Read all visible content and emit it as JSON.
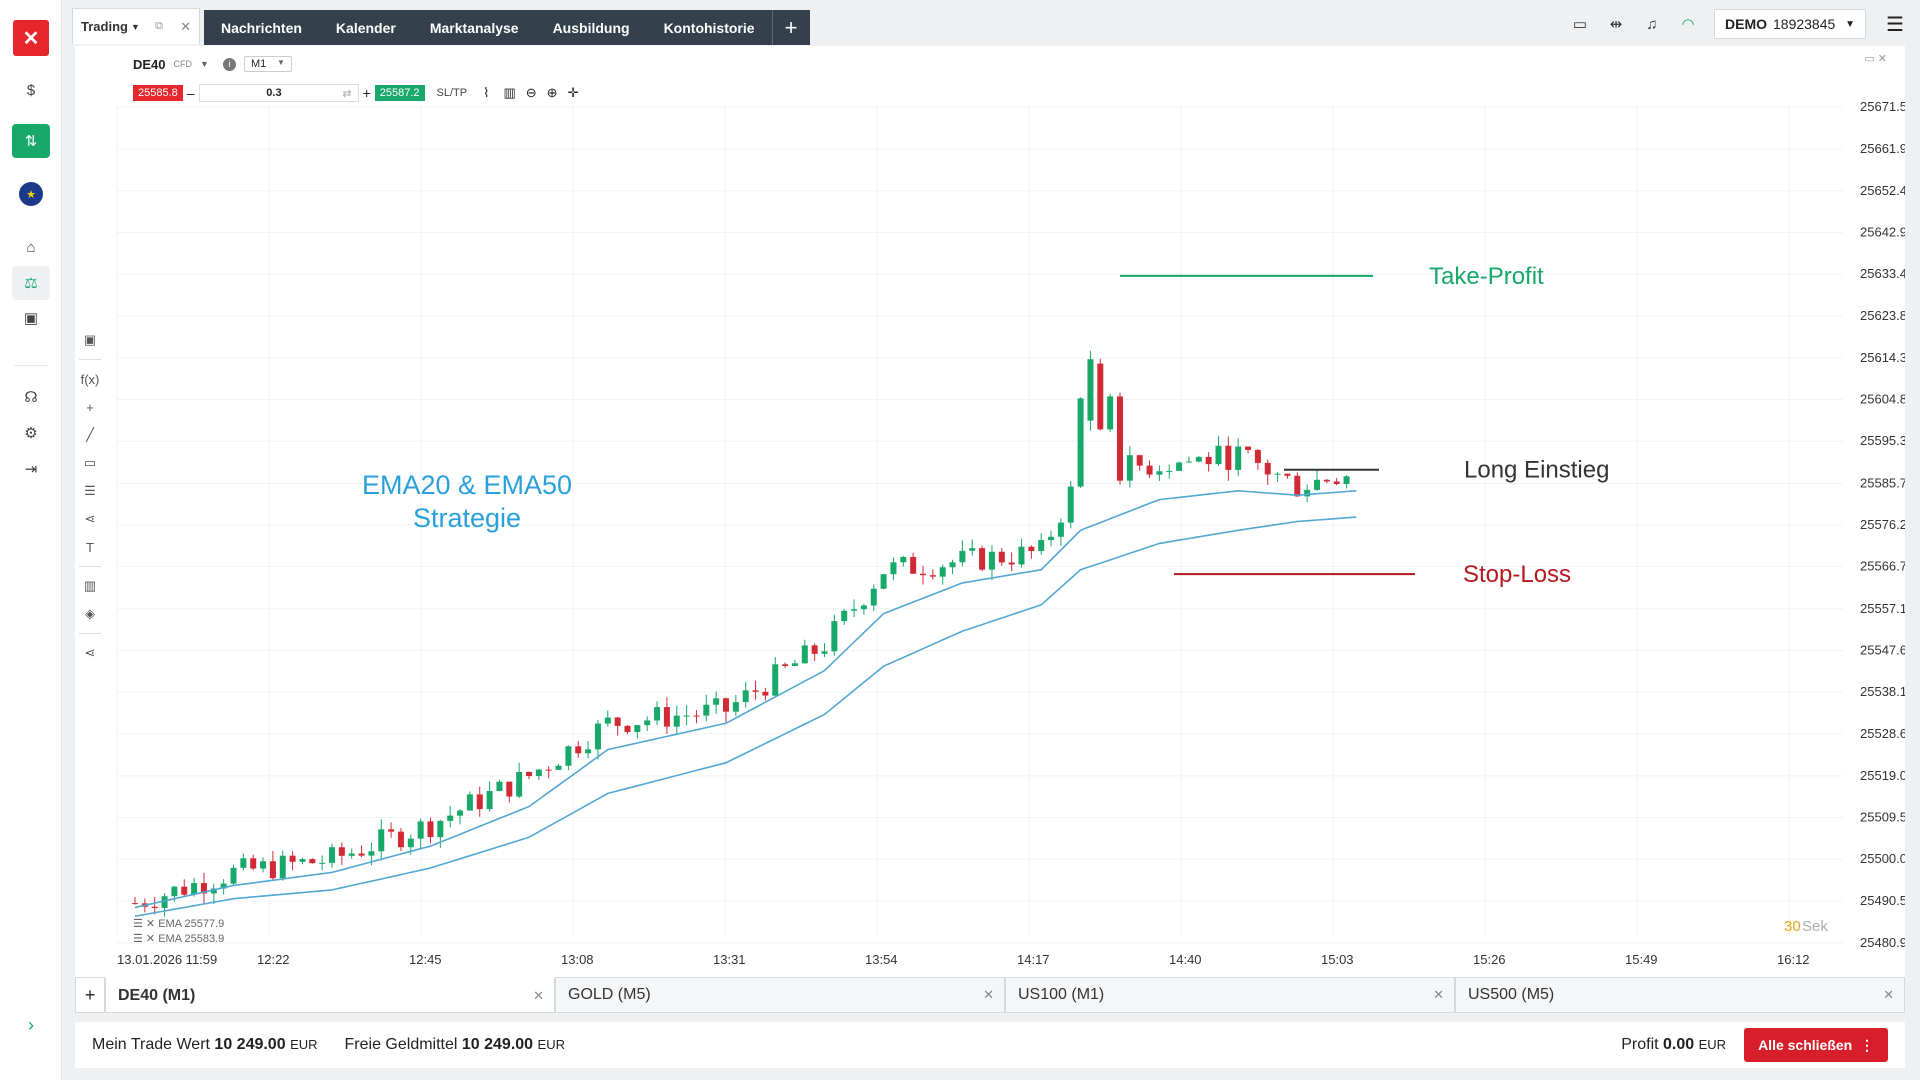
{
  "sidebar": {
    "logo": "✕",
    "icons": [
      {
        "name": "dollar-circle-icon",
        "glyph": "$"
      },
      {
        "name": "trading-app-icon",
        "glyph": "⇅"
      },
      {
        "name": "eu-flag-icon",
        "glyph": "★"
      },
      {
        "name": "home-icon",
        "glyph": "⌂"
      },
      {
        "name": "market-chart-icon",
        "glyph": "⚖"
      },
      {
        "name": "calculator-icon",
        "glyph": "▣"
      },
      {
        "name": "headset-icon",
        "glyph": "☊"
      },
      {
        "name": "gear-icon",
        "glyph": "⚙"
      },
      {
        "name": "logout-icon",
        "glyph": "⇥"
      }
    ],
    "expand": "›"
  },
  "top": {
    "trading_tab": "Trading",
    "nav": [
      "Nachrichten",
      "Kalender",
      "Marktanalyse",
      "Ausbildung",
      "Kontohistorie"
    ],
    "plus": "+",
    "account_type": "DEMO",
    "account_number": "18923845"
  },
  "chart": {
    "symbol": "DE40",
    "symbol_suffix": "CFD",
    "timeframe": "M1",
    "sell_price": "25585.8",
    "buy_price": "25587.2",
    "quantity": "0.3",
    "sltp_label": "SL/TP",
    "ema_legend": [
      "EMA 25577.9",
      "EMA 25583.9"
    ],
    "countdown_value": "30",
    "countdown_unit": "Sek"
  },
  "chart_data": {
    "type": "candlestick",
    "title": "EMA20 & EMA50 Strategie",
    "y_ticks": [
      25671.5,
      25661.9,
      25652.4,
      25642.9,
      25633.4,
      25623.8,
      25614.3,
      25604.8,
      25595.3,
      25585.7,
      25576.2,
      25566.7,
      25557.1,
      25547.6,
      25538.1,
      25528.6,
      25519.0,
      25509.5,
      25500.0,
      25490.5,
      25480.9
    ],
    "ylim": [
      25480.9,
      25671.5
    ],
    "x_ticks": [
      "13.01.2026 11:59",
      "12:22",
      "12:45",
      "13:08",
      "13:31",
      "13:54",
      "14:17",
      "14:40",
      "15:03",
      "15:26",
      "15:49",
      "16:12"
    ],
    "trend_path": [
      [
        0,
        25490
      ],
      [
        10,
        25497
      ],
      [
        20,
        25500
      ],
      [
        30,
        25508
      ],
      [
        40,
        25519
      ],
      [
        48,
        25531
      ],
      [
        60,
        25534
      ],
      [
        70,
        25549
      ],
      [
        76,
        25566
      ],
      [
        84,
        25568
      ],
      [
        92,
        25570
      ],
      [
        96,
        25588
      ],
      [
        104,
        25590
      ],
      [
        112,
        25592
      ],
      [
        118,
        25585
      ],
      [
        124,
        25589
      ]
    ],
    "ema20": [
      [
        0,
        25489
      ],
      [
        10,
        25494
      ],
      [
        20,
        25497
      ],
      [
        30,
        25503
      ],
      [
        40,
        25512
      ],
      [
        48,
        25525
      ],
      [
        60,
        25531
      ],
      [
        70,
        25543
      ],
      [
        76,
        25556
      ],
      [
        84,
        25563
      ],
      [
        92,
        25566
      ],
      [
        96,
        25575
      ],
      [
        104,
        25582
      ],
      [
        112,
        25584
      ],
      [
        118,
        25583
      ],
      [
        124,
        25584
      ]
    ],
    "ema50": [
      [
        0,
        25487
      ],
      [
        10,
        25491
      ],
      [
        20,
        25493
      ],
      [
        30,
        25498
      ],
      [
        40,
        25505
      ],
      [
        48,
        25515
      ],
      [
        60,
        25522
      ],
      [
        70,
        25533
      ],
      [
        76,
        25544
      ],
      [
        84,
        25552
      ],
      [
        92,
        25558
      ],
      [
        96,
        25566
      ],
      [
        104,
        25572
      ],
      [
        112,
        25575
      ],
      [
        118,
        25577
      ],
      [
        124,
        25578
      ]
    ],
    "annotations": [
      {
        "label": "Take-Profit",
        "price": 25633.0,
        "color": "#16a76b"
      },
      {
        "label": "Long Einstieg",
        "price": 25588.8,
        "color": "#333333"
      },
      {
        "label": "Stop-Loss",
        "price": 25565.0,
        "color": "#b5181f"
      }
    ]
  },
  "bottom_tabs": [
    "DE40 (M1)",
    "GOLD (M5)",
    "US100 (M1)",
    "US500 (M5)"
  ],
  "status": {
    "trade_value_label": "Mein Trade Wert",
    "trade_value": "10 249.00",
    "free_funds_label": "Freie Geldmittel",
    "free_funds": "10 249.00",
    "currency": "EUR",
    "profit_label": "Profit",
    "profit_value": "0.00",
    "close_all": "Alle schließen"
  }
}
